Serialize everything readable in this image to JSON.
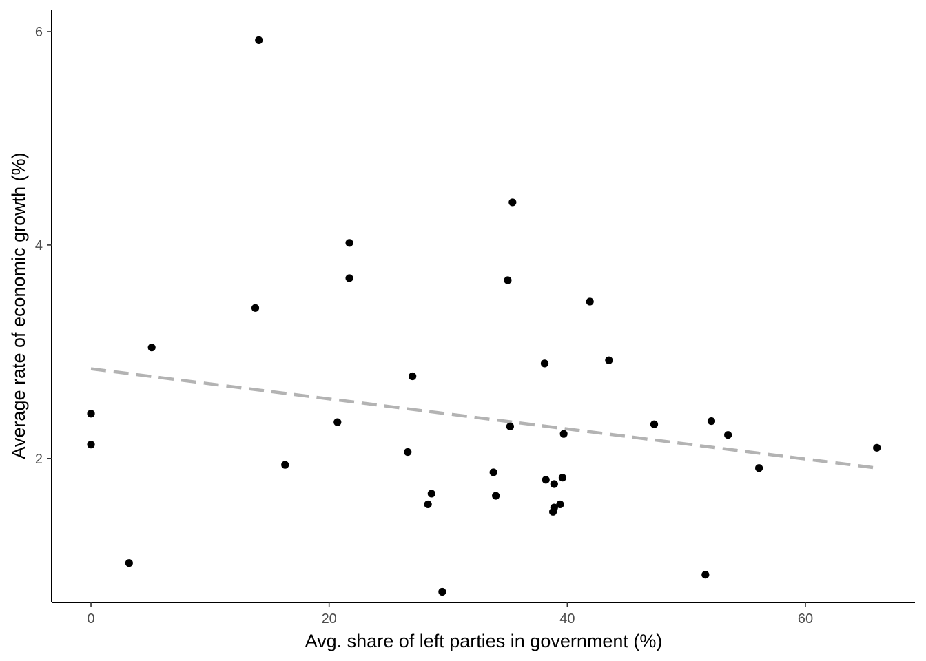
{
  "chart_data": {
    "type": "scatter",
    "title": "",
    "xlabel": "Avg. share of left parties in government (%)",
    "ylabel": "Average rate of economic growth (%)",
    "xlim": [
      -3.3,
      69.2
    ],
    "ylim": [
      0.65,
      6.2
    ],
    "x_ticks": [
      0,
      20,
      40,
      60
    ],
    "y_ticks": [
      2,
      4,
      6
    ],
    "x_tick_labels": [
      "0",
      "20",
      "40",
      "60"
    ],
    "y_tick_labels": [
      "2",
      "4",
      "6"
    ],
    "grid": false,
    "legend": "none",
    "point_color": "#000000",
    "trend_color": "#b3b3b3",
    "points": [
      {
        "x": 0.0,
        "y": 2.42
      },
      {
        "x": 0.0,
        "y": 2.13
      },
      {
        "x": 3.2,
        "y": 1.02
      },
      {
        "x": 5.1,
        "y": 3.04
      },
      {
        "x": 13.8,
        "y": 3.41
      },
      {
        "x": 14.1,
        "y": 5.92
      },
      {
        "x": 16.3,
        "y": 1.94
      },
      {
        "x": 20.7,
        "y": 2.34
      },
      {
        "x": 21.7,
        "y": 4.02
      },
      {
        "x": 21.7,
        "y": 3.69
      },
      {
        "x": 26.6,
        "y": 2.06
      },
      {
        "x": 27.0,
        "y": 2.77
      },
      {
        "x": 28.3,
        "y": 1.57
      },
      {
        "x": 28.6,
        "y": 1.67
      },
      {
        "x": 29.5,
        "y": 0.75
      },
      {
        "x": 33.8,
        "y": 1.87
      },
      {
        "x": 34.0,
        "y": 1.65
      },
      {
        "x": 35.0,
        "y": 3.67
      },
      {
        "x": 35.2,
        "y": 2.3
      },
      {
        "x": 35.4,
        "y": 4.4
      },
      {
        "x": 38.1,
        "y": 2.89
      },
      {
        "x": 38.2,
        "y": 1.8
      },
      {
        "x": 38.8,
        "y": 1.5
      },
      {
        "x": 38.9,
        "y": 1.54
      },
      {
        "x": 38.9,
        "y": 1.76
      },
      {
        "x": 39.4,
        "y": 1.57
      },
      {
        "x": 39.6,
        "y": 1.82
      },
      {
        "x": 39.7,
        "y": 2.23
      },
      {
        "x": 41.9,
        "y": 3.47
      },
      {
        "x": 43.5,
        "y": 2.92
      },
      {
        "x": 47.3,
        "y": 2.32
      },
      {
        "x": 51.6,
        "y": 0.91
      },
      {
        "x": 52.1,
        "y": 2.35
      },
      {
        "x": 53.5,
        "y": 2.22
      },
      {
        "x": 56.1,
        "y": 1.91
      },
      {
        "x": 66.0,
        "y": 2.1
      }
    ],
    "trend_line": {
      "style": "dashed",
      "x": [
        0.0,
        66.0
      ],
      "y": [
        2.84,
        1.91
      ]
    }
  }
}
